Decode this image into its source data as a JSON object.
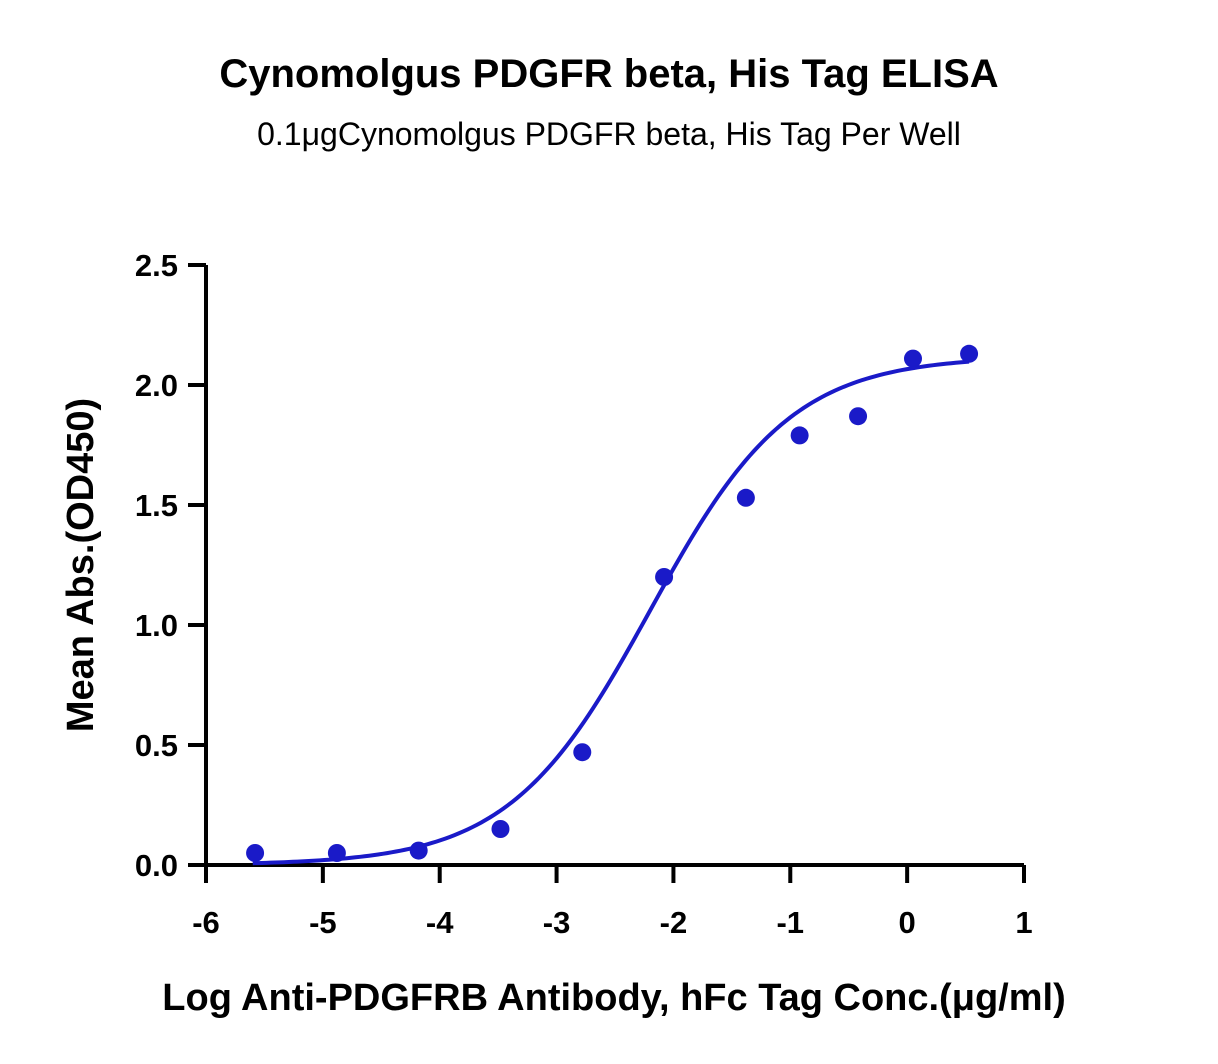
{
  "chart_data": {
    "type": "scatter",
    "title": "Cynomolgus PDGFR beta, His Tag ELISA",
    "subtitle": "0.1μgCynomolgus PDGFR beta, His Tag Per Well",
    "xlabel": "Log Anti-PDGFRB Antibody, hFc Tag Conc.(μg/ml)",
    "ylabel": "Mean Abs.(OD450)",
    "xlim": [
      -6,
      1
    ],
    "ylim": [
      0,
      2.5
    ],
    "x_ticks": [
      "-6",
      "-5",
      "-4",
      "-3",
      "-2",
      "-1",
      "0",
      "1"
    ],
    "y_ticks": [
      "0.0",
      "0.5",
      "1.0",
      "1.5",
      "2.0",
      "2.5"
    ],
    "grid": false,
    "legend": "none",
    "series": [
      {
        "x": [
          -5.58,
          -4.88,
          -4.18,
          -3.48,
          -2.78,
          -2.08,
          -1.38,
          -0.92,
          -0.42,
          0.05,
          0.53
        ],
        "y": [
          0.05,
          0.05,
          0.06,
          0.15,
          0.47,
          1.2,
          1.53,
          1.79,
          1.87,
          2.11,
          2.13
        ],
        "color": "#1a1ac8",
        "marker": "circle"
      }
    ],
    "fit_curve": {
      "model": "4PL",
      "bottom": 0.0,
      "top": 2.12,
      "log_ec50": -2.2,
      "hill_slope": 0.72,
      "x_range": [
        -5.6,
        0.53
      ],
      "color": "#1a1ac8"
    }
  }
}
